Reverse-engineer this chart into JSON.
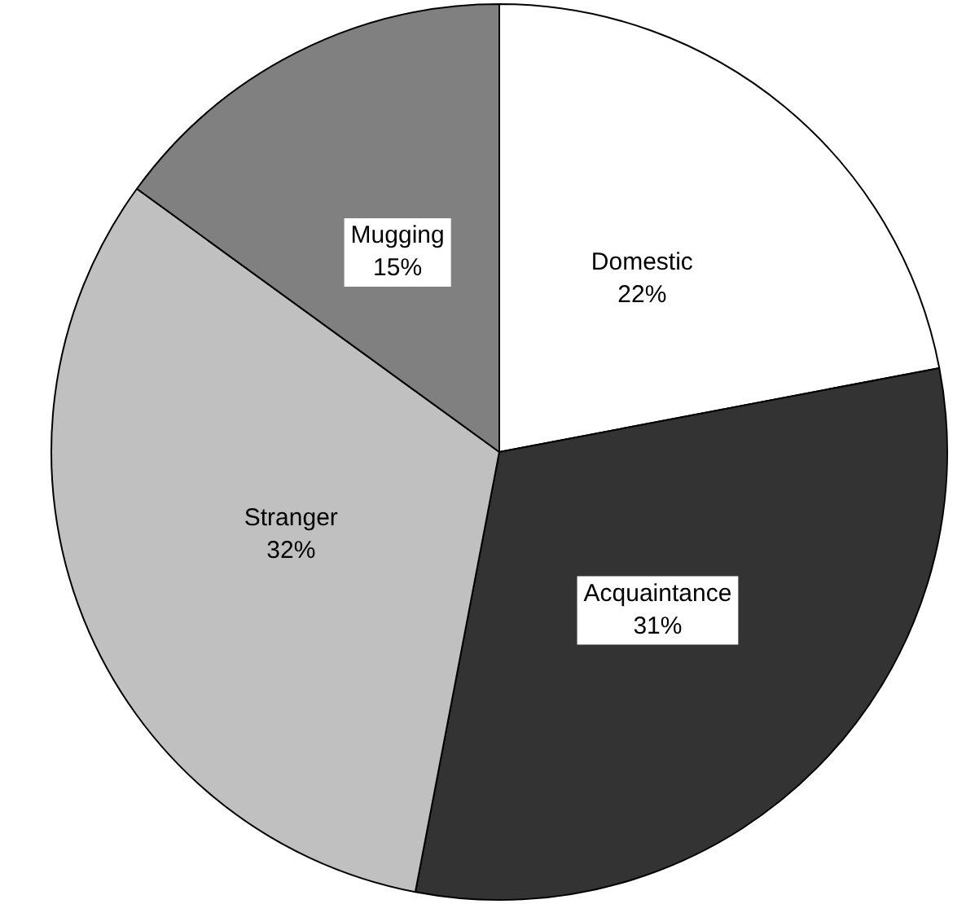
{
  "chart_data": {
    "type": "pie",
    "categories": [
      "Domestic",
      "Acquaintance",
      "Stranger",
      "Mugging"
    ],
    "values": [
      22,
      31,
      32,
      15
    ],
    "colors": [
      "#ffffff",
      "#333333",
      "#c0c0c0",
      "#808080"
    ],
    "value_labels": [
      "22%",
      "31%",
      "32%",
      "15%"
    ]
  }
}
